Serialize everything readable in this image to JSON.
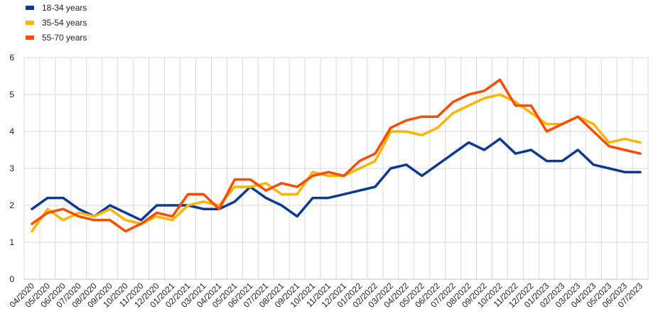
{
  "chart_data": {
    "type": "line",
    "title": "",
    "xlabel": "",
    "ylabel": "",
    "ylim": [
      0,
      6
    ],
    "yticks": [
      0,
      1,
      2,
      3,
      4,
      5,
      6
    ],
    "grid": true,
    "legend_position": "top-left",
    "categories": [
      "04/2020",
      "05/2020",
      "06/2020",
      "07/2020",
      "08/2020",
      "09/2020",
      "10/2020",
      "11/2020",
      "12/2020",
      "01/2021",
      "02/2021",
      "03/2021",
      "04/2021",
      "05/2021",
      "06/2021",
      "07/2021",
      "08/2021",
      "09/2021",
      "10/2021",
      "11/2021",
      "12/2021",
      "01/2022",
      "02/2022",
      "03/2022",
      "04/2022",
      "05/2022",
      "06/2022",
      "07/2022",
      "08/2022",
      "09/2022",
      "10/2022",
      "11/2022",
      "12/2022",
      "01/2023",
      "02/2023",
      "03/2023",
      "04/2023",
      "05/2023",
      "06/2023",
      "07/2023"
    ],
    "series": [
      {
        "name": "18-34 years",
        "color": "#0b3a94",
        "values": [
          1.9,
          2.2,
          2.2,
          1.9,
          1.7,
          2.0,
          1.8,
          1.6,
          2.0,
          2.0,
          2.0,
          1.9,
          1.9,
          2.1,
          2.5,
          2.2,
          2.0,
          1.7,
          2.2,
          2.2,
          2.3,
          2.4,
          2.5,
          3.0,
          3.1,
          2.8,
          3.1,
          3.4,
          3.7,
          3.5,
          3.8,
          3.4,
          3.5,
          3.2,
          3.2,
          3.5,
          3.1,
          3.0,
          2.9,
          2.9
        ]
      },
      {
        "name": "35-54 years",
        "color": "#ffb400",
        "values": [
          1.3,
          1.9,
          1.6,
          1.8,
          1.7,
          1.9,
          1.6,
          1.5,
          1.7,
          1.6,
          2.0,
          2.1,
          2.0,
          2.5,
          2.5,
          2.6,
          2.3,
          2.3,
          2.9,
          2.8,
          2.8,
          3.0,
          3.2,
          4.0,
          4.0,
          3.9,
          4.1,
          4.5,
          4.7,
          4.9,
          5.0,
          4.8,
          4.5,
          4.2,
          4.2,
          4.4,
          4.2,
          3.7,
          3.8,
          3.7
        ]
      },
      {
        "name": "55-70 years",
        "color": "#ff4b00",
        "values": [
          1.5,
          1.8,
          1.9,
          1.7,
          1.6,
          1.6,
          1.3,
          1.5,
          1.8,
          1.7,
          2.3,
          2.3,
          1.9,
          2.7,
          2.7,
          2.4,
          2.6,
          2.5,
          2.8,
          2.9,
          2.8,
          3.2,
          3.4,
          4.1,
          4.3,
          4.4,
          4.4,
          4.8,
          5.0,
          5.1,
          5.4,
          4.7,
          4.7,
          4.0,
          4.2,
          4.4,
          4.0,
          3.6,
          3.5,
          3.4
        ]
      }
    ]
  }
}
